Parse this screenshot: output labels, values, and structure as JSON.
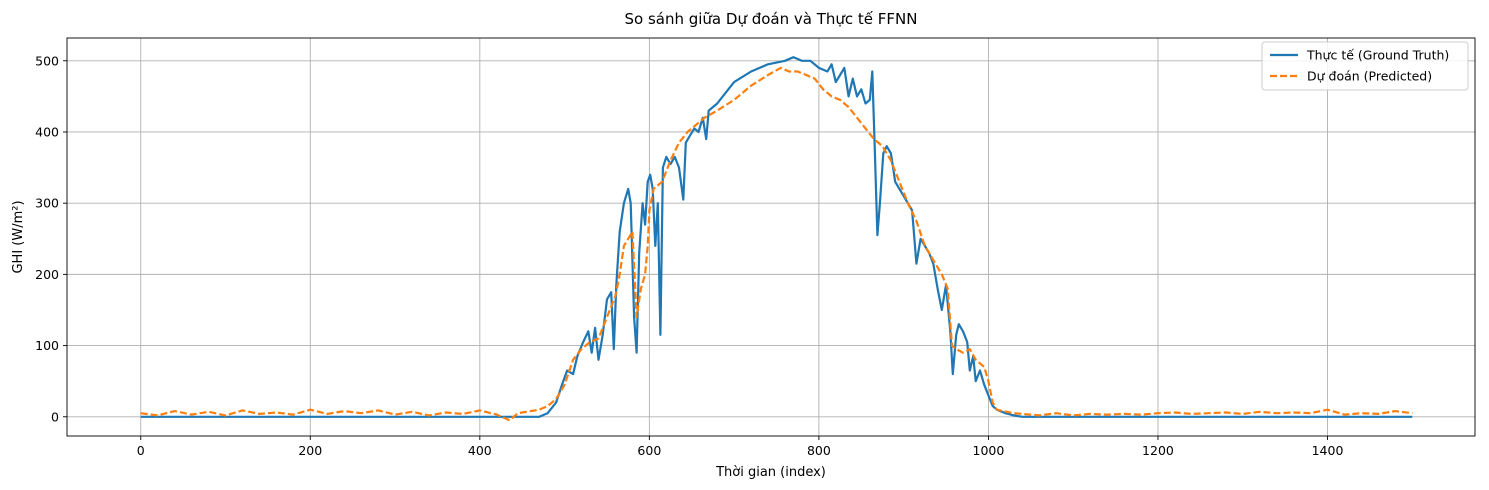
{
  "chart_data": {
    "type": "line",
    "title": "So sánh giữa Dự đoán và Thực tế FFNN",
    "xlabel": "Thời gian (index)",
    "ylabel": "GHI (W/m²)",
    "xlim": [
      -87,
      1574
    ],
    "ylim": [
      -27,
      532
    ],
    "xticks": [
      0,
      200,
      400,
      600,
      800,
      1000,
      1200,
      1400
    ],
    "yticks": [
      0,
      100,
      200,
      300,
      400,
      500
    ],
    "grid": true,
    "legend_position": "top-right",
    "series": [
      {
        "name": "Thực tế (Ground Truth)",
        "color": "#1f77b4",
        "style": "solid",
        "points": [
          [
            0,
            0
          ],
          [
            470,
            0
          ],
          [
            480,
            5
          ],
          [
            490,
            20
          ],
          [
            497,
            45
          ],
          [
            503,
            65
          ],
          [
            510,
            60
          ],
          [
            515,
            85
          ],
          [
            522,
            105
          ],
          [
            528,
            120
          ],
          [
            532,
            90
          ],
          [
            536,
            125
          ],
          [
            540,
            80
          ],
          [
            545,
            115
          ],
          [
            550,
            165
          ],
          [
            555,
            175
          ],
          [
            558,
            95
          ],
          [
            561,
            185
          ],
          [
            565,
            260
          ],
          [
            570,
            300
          ],
          [
            575,
            320
          ],
          [
            578,
            300
          ],
          [
            582,
            140
          ],
          [
            585,
            90
          ],
          [
            588,
            230
          ],
          [
            592,
            300
          ],
          [
            595,
            270
          ],
          [
            598,
            330
          ],
          [
            601,
            340
          ],
          [
            604,
            320
          ],
          [
            607,
            240
          ],
          [
            610,
            300
          ],
          [
            613,
            115
          ],
          [
            616,
            350
          ],
          [
            620,
            365
          ],
          [
            625,
            355
          ],
          [
            630,
            365
          ],
          [
            635,
            350
          ],
          [
            640,
            305
          ],
          [
            643,
            385
          ],
          [
            648,
            395
          ],
          [
            653,
            405
          ],
          [
            658,
            400
          ],
          [
            663,
            420
          ],
          [
            667,
            390
          ],
          [
            670,
            430
          ],
          [
            680,
            440
          ],
          [
            690,
            455
          ],
          [
            700,
            470
          ],
          [
            720,
            485
          ],
          [
            740,
            495
          ],
          [
            760,
            500
          ],
          [
            770,
            505
          ],
          [
            780,
            500
          ],
          [
            790,
            500
          ],
          [
            800,
            490
          ],
          [
            810,
            485
          ],
          [
            815,
            495
          ],
          [
            820,
            470
          ],
          [
            825,
            480
          ],
          [
            830,
            490
          ],
          [
            835,
            450
          ],
          [
            840,
            475
          ],
          [
            845,
            450
          ],
          [
            850,
            460
          ],
          [
            855,
            440
          ],
          [
            860,
            445
          ],
          [
            863,
            485
          ],
          [
            866,
            375
          ],
          [
            869,
            255
          ],
          [
            872,
            300
          ],
          [
            876,
            370
          ],
          [
            880,
            380
          ],
          [
            885,
            370
          ],
          [
            890,
            330
          ],
          [
            900,
            310
          ],
          [
            910,
            290
          ],
          [
            915,
            215
          ],
          [
            920,
            250
          ],
          [
            925,
            240
          ],
          [
            930,
            230
          ],
          [
            935,
            215
          ],
          [
            940,
            180
          ],
          [
            945,
            150
          ],
          [
            950,
            185
          ],
          [
            955,
            120
          ],
          [
            958,
            60
          ],
          [
            962,
            115
          ],
          [
            965,
            130
          ],
          [
            970,
            120
          ],
          [
            975,
            105
          ],
          [
            978,
            65
          ],
          [
            982,
            85
          ],
          [
            985,
            50
          ],
          [
            990,
            65
          ],
          [
            995,
            45
          ],
          [
            1000,
            30
          ],
          [
            1005,
            15
          ],
          [
            1010,
            10
          ],
          [
            1020,
            5
          ],
          [
            1030,
            2
          ],
          [
            1040,
            0
          ],
          [
            1500,
            0
          ]
        ]
      },
      {
        "name": "Dự đoán (Predicted)",
        "color": "#ff7f0e",
        "style": "dashed",
        "points": [
          [
            0,
            5
          ],
          [
            20,
            2
          ],
          [
            40,
            8
          ],
          [
            60,
            3
          ],
          [
            80,
            7
          ],
          [
            100,
            2
          ],
          [
            120,
            9
          ],
          [
            140,
            4
          ],
          [
            160,
            6
          ],
          [
            180,
            3
          ],
          [
            200,
            10
          ],
          [
            220,
            4
          ],
          [
            240,
            8
          ],
          [
            260,
            5
          ],
          [
            280,
            9
          ],
          [
            300,
            3
          ],
          [
            320,
            7
          ],
          [
            340,
            2
          ],
          [
            360,
            6
          ],
          [
            380,
            4
          ],
          [
            400,
            9
          ],
          [
            420,
            3
          ],
          [
            435,
            -5
          ],
          [
            445,
            5
          ],
          [
            460,
            8
          ],
          [
            470,
            10
          ],
          [
            480,
            15
          ],
          [
            490,
            25
          ],
          [
            500,
            45
          ],
          [
            510,
            80
          ],
          [
            520,
            95
          ],
          [
            530,
            105
          ],
          [
            540,
            110
          ],
          [
            550,
            140
          ],
          [
            560,
            170
          ],
          [
            565,
            200
          ],
          [
            570,
            240
          ],
          [
            575,
            250
          ],
          [
            580,
            260
          ],
          [
            585,
            140
          ],
          [
            590,
            180
          ],
          [
            595,
            200
          ],
          [
            598,
            240
          ],
          [
            600,
            290
          ],
          [
            605,
            320
          ],
          [
            615,
            330
          ],
          [
            625,
            360
          ],
          [
            635,
            385
          ],
          [
            645,
            400
          ],
          [
            655,
            410
          ],
          [
            665,
            420
          ],
          [
            680,
            430
          ],
          [
            700,
            445
          ],
          [
            720,
            465
          ],
          [
            740,
            480
          ],
          [
            755,
            490
          ],
          [
            765,
            485
          ],
          [
            775,
            485
          ],
          [
            785,
            480
          ],
          [
            795,
            475
          ],
          [
            805,
            460
          ],
          [
            815,
            450
          ],
          [
            825,
            445
          ],
          [
            835,
            435
          ],
          [
            845,
            420
          ],
          [
            855,
            405
          ],
          [
            865,
            390
          ],
          [
            875,
            380
          ],
          [
            885,
            360
          ],
          [
            895,
            330
          ],
          [
            905,
            300
          ],
          [
            915,
            275
          ],
          [
            925,
            240
          ],
          [
            935,
            220
          ],
          [
            945,
            200
          ],
          [
            952,
            180
          ],
          [
            957,
            100
          ],
          [
            962,
            95
          ],
          [
            970,
            90
          ],
          [
            978,
            95
          ],
          [
            985,
            80
          ],
          [
            995,
            70
          ],
          [
            1000,
            50
          ],
          [
            1005,
            20
          ],
          [
            1010,
            10
          ],
          [
            1030,
            5
          ],
          [
            1060,
            2
          ],
          [
            1080,
            5
          ],
          [
            1100,
            2
          ],
          [
            1120,
            4
          ],
          [
            1140,
            3
          ],
          [
            1160,
            4
          ],
          [
            1180,
            3
          ],
          [
            1200,
            5
          ],
          [
            1220,
            6
          ],
          [
            1240,
            4
          ],
          [
            1260,
            5
          ],
          [
            1280,
            6
          ],
          [
            1300,
            4
          ],
          [
            1320,
            7
          ],
          [
            1340,
            5
          ],
          [
            1360,
            6
          ],
          [
            1380,
            5
          ],
          [
            1400,
            10
          ],
          [
            1420,
            3
          ],
          [
            1440,
            5
          ],
          [
            1460,
            4
          ],
          [
            1480,
            8
          ],
          [
            1500,
            5
          ]
        ]
      }
    ]
  }
}
